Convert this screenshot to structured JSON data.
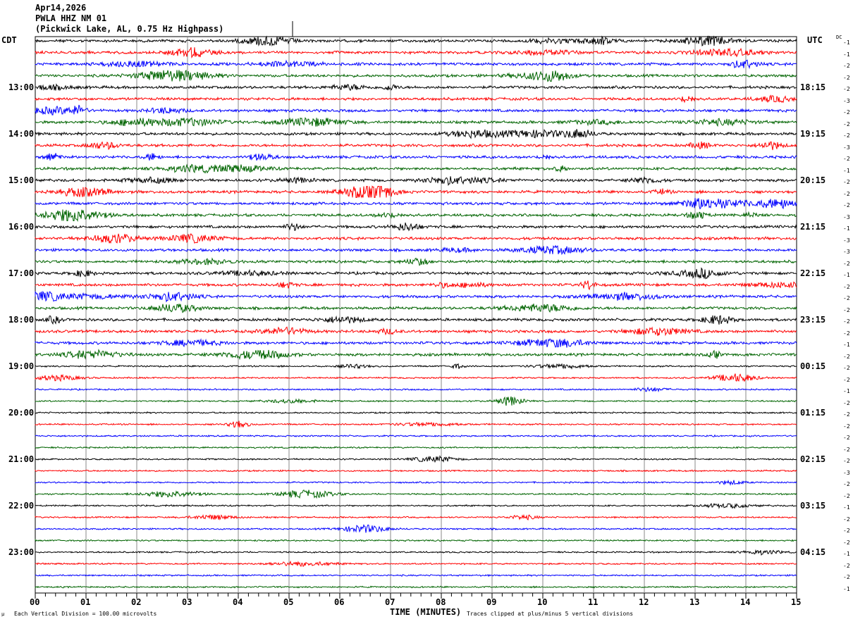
{
  "header": {
    "date": "Apr14,2026",
    "station": "PWLA HHZ NM 01",
    "description": "(Pickwick Lake, AL, 0.75 Hz Highpass)"
  },
  "left_timezone": "CDT",
  "right_timezone": "UTC",
  "dc_label": "DC",
  "footer": {
    "scale_note": "Each Vertical Division =  100.00 microvolts",
    "xlabel": "TIME (MINUTES)",
    "clip_note": "Traces clipped at plus/minus 5 vertical divisions"
  },
  "chart_data": {
    "type": "line",
    "title": "PWLA HHZ NM 01",
    "xlabel": "TIME (MINUTES)",
    "xlim": [
      0,
      15
    ],
    "x_ticks": [
      "00",
      "01",
      "02",
      "03",
      "04",
      "05",
      "06",
      "07",
      "08",
      "09",
      "10",
      "11",
      "12",
      "13",
      "14",
      "15"
    ],
    "grid": true,
    "trace_colors": [
      "#000000",
      "#ff0000",
      "#0000ff",
      "#006400"
    ],
    "trace_count": 48,
    "minutes_per_trace": 15,
    "left_hour_labels": [
      "13:00",
      "14:00",
      "15:00",
      "16:00",
      "17:00",
      "18:00",
      "19:00",
      "20:00",
      "21:00",
      "22:00",
      "23:00"
    ],
    "right_hour_labels": [
      "18:15",
      "19:15",
      "20:15",
      "21:15",
      "22:15",
      "23:15",
      "00:15",
      "01:15",
      "02:15",
      "03:15",
      "04:15"
    ],
    "dc_offsets": [
      -1,
      -1,
      -2,
      -2,
      -2,
      -3,
      -2,
      -2,
      -2,
      -3,
      -2,
      -1,
      -2,
      -2,
      -2,
      -3,
      -1,
      -3,
      -3,
      -2,
      -1,
      -2,
      -2,
      -2,
      -2,
      -2,
      -1,
      -2,
      -2,
      -2,
      -1,
      -2,
      -2,
      -2,
      -2,
      -2,
      -2,
      -3,
      -2,
      -2,
      -1,
      -2,
      -2,
      -2,
      -1,
      -2,
      -2,
      -1
    ]
  }
}
